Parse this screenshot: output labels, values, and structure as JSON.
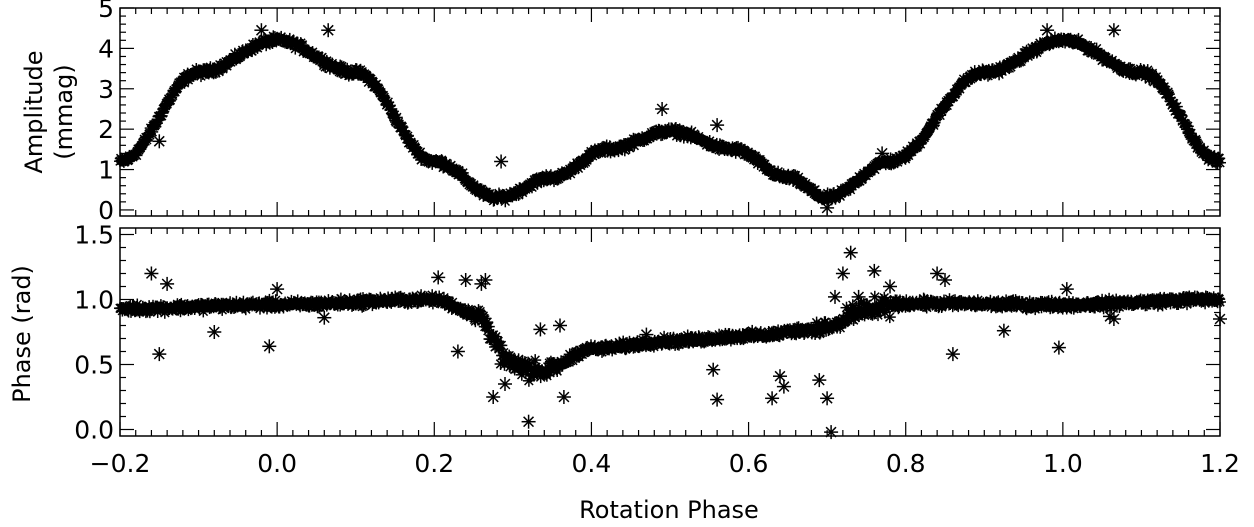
{
  "chart_data": [
    {
      "panel": "top",
      "type": "scatter",
      "ylabel": "Amplitude",
      "ylabel_unit": "(mmag)",
      "xlim": [
        -0.2,
        1.2
      ],
      "ylim": [
        -0.15,
        5.0
      ],
      "yticks": [
        "0",
        "1",
        "2",
        "3",
        "4",
        "5"
      ],
      "ytick_values": [
        0,
        1,
        2,
        3,
        4,
        5
      ],
      "marker": "asterisk",
      "curve": {
        "description_points_x": [
          -0.2,
          -0.1,
          0.0,
          0.1,
          0.2,
          0.28,
          0.35,
          0.42,
          0.5,
          0.58,
          0.65,
          0.7,
          0.78,
          0.9,
          1.0,
          1.1,
          1.2
        ],
        "description_points_y": [
          1.2,
          3.4,
          4.2,
          3.4,
          1.2,
          0.3,
          0.8,
          1.5,
          1.95,
          1.5,
          0.8,
          0.3,
          1.2,
          3.4,
          4.2,
          3.4,
          1.2
        ]
      },
      "outliers": {
        "x": [
          0.285,
          0.065,
          -0.02,
          0.49,
          0.7,
          1.065,
          0.56,
          0.77,
          -0.15,
          0.98
        ],
        "y": [
          1.2,
          4.45,
          4.45,
          2.5,
          0.05,
          4.45,
          2.1,
          1.4,
          1.7,
          4.45
        ]
      }
    },
    {
      "panel": "bottom",
      "type": "scatter",
      "ylabel": "Phase (rad)",
      "xlabel": "Rotation Phase",
      "xlim": [
        -0.2,
        1.2
      ],
      "ylim": [
        -0.05,
        1.55
      ],
      "xticks": [
        "−0.2",
        "0.0",
        "0.2",
        "0.4",
        "0.6",
        "0.8",
        "1.0",
        "1.2"
      ],
      "xtick_values": [
        -0.2,
        0.0,
        0.2,
        0.4,
        0.6,
        0.8,
        1.0,
        1.2
      ],
      "yticks": [
        "0.0",
        "0.5",
        "1.0",
        "1.5"
      ],
      "ytick_values": [
        0.0,
        0.5,
        1.0,
        1.5
      ],
      "marker": "asterisk",
      "curve": {
        "description_points_x": [
          -0.2,
          0.0,
          0.2,
          0.25,
          0.3,
          0.34,
          0.4,
          0.5,
          0.6,
          0.7,
          0.75,
          0.8,
          1.0,
          1.2
        ],
        "description_points_y": [
          0.93,
          0.96,
          1.0,
          0.9,
          0.5,
          0.45,
          0.62,
          0.68,
          0.72,
          0.78,
          0.92,
          0.97,
          0.96,
          1.0
        ]
      },
      "outliers": {
        "x": [
          -0.16,
          -0.15,
          -0.14,
          -0.08,
          -0.01,
          0.0,
          0.06,
          0.205,
          0.23,
          0.24,
          0.26,
          0.265,
          0.275,
          0.29,
          0.32,
          0.335,
          0.36,
          0.365,
          0.47,
          0.555,
          0.56,
          0.63,
          0.64,
          0.645,
          0.69,
          0.7,
          0.705,
          0.71,
          0.72,
          0.73,
          0.74,
          0.76,
          0.78,
          0.84,
          0.85,
          0.86,
          0.925,
          0.995,
          1.005,
          1.06,
          1.065,
          1.2
        ],
        "y": [
          1.2,
          0.58,
          1.12,
          0.75,
          0.64,
          1.08,
          0.86,
          1.17,
          0.6,
          1.15,
          1.12,
          1.15,
          0.25,
          0.35,
          0.06,
          0.77,
          0.8,
          0.25,
          0.73,
          0.46,
          0.23,
          0.24,
          0.41,
          0.33,
          0.38,
          0.24,
          -0.02,
          1.02,
          1.2,
          1.36,
          1.02,
          1.22,
          1.1,
          1.2,
          1.15,
          0.58,
          0.76,
          0.63,
          1.08,
          0.87,
          0.85,
          0.85
        ]
      }
    }
  ]
}
